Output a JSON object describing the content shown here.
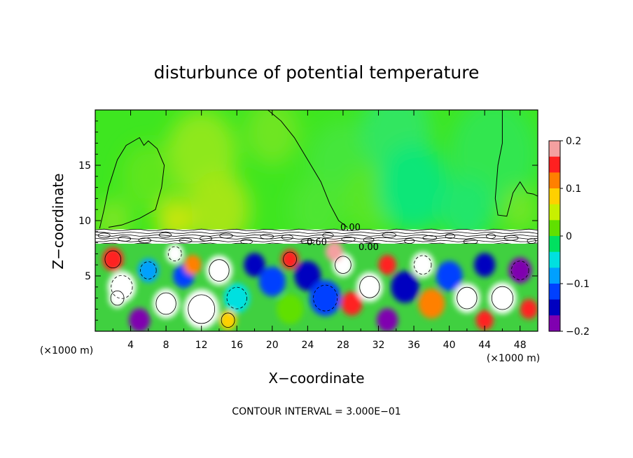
{
  "chart_data": {
    "type": "heatmap",
    "title": "disturbunce of potential temperature",
    "xlabel": "X−coordinate",
    "ylabel": "Z−coordinate",
    "x_unit": "(×1000 m)",
    "x_unit_left": "(×1000 m)",
    "xlim": [
      0,
      50
    ],
    "ylim": [
      0,
      20
    ],
    "x_ticks": [
      4,
      8,
      12,
      16,
      20,
      24,
      28,
      32,
      36,
      40,
      44,
      48
    ],
    "y_ticks": [
      5,
      10,
      15
    ],
    "footer": "CONTOUR INTERVAL = 3.000E−01",
    "colorbar": {
      "range": [
        -0.2,
        0.2
      ],
      "ticks": [
        "0.2",
        "0.1",
        "0",
        "−0.1",
        "−0.2"
      ],
      "colors": [
        "#f4a0a0",
        "#ff2020",
        "#ff8000",
        "#ffd000",
        "#c8f000",
        "#60e000",
        "#00e060",
        "#00e0e0",
        "#00a0ff",
        "#0040ff",
        "#0000c0",
        "#8000b0"
      ]
    },
    "contour_labels": [
      "0.00",
      "0.60",
      "0.00"
    ],
    "layers": [
      {
        "name": "upper",
        "z_range": [
          9.2,
          20
        ],
        "value_range": [
          -0.03,
          0.05
        ]
      },
      {
        "name": "inversion",
        "z_range": [
          7.8,
          9.2
        ]
      },
      {
        "name": "lower",
        "z_range": [
          0,
          7.8
        ],
        "value_range": [
          -0.2,
          0.2
        ]
      }
    ]
  }
}
